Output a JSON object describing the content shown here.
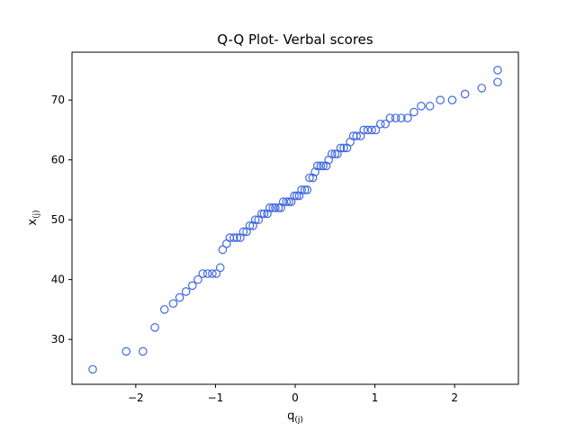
{
  "chart_data": {
    "type": "scatter",
    "title": "Q-Q Plot- Verbal scores",
    "xlabel_main": "q",
    "xlabel_sub": "(j)",
    "ylabel_main": "x",
    "ylabel_sub": "(j)",
    "xlim": [
      -2.8,
      2.8
    ],
    "ylim": [
      22.5,
      78.0
    ],
    "xticks": [
      -2,
      -1,
      0,
      1,
      2
    ],
    "xtick_labels": [
      "−2",
      "−1",
      "0",
      "1",
      "2"
    ],
    "yticks": [
      30,
      40,
      50,
      60,
      70
    ],
    "ytick_labels": [
      "30",
      "40",
      "50",
      "60",
      "70"
    ],
    "grid": false,
    "marker_color": "#4169e1",
    "series": [
      {
        "points": [
          [
            -2.54,
            25
          ],
          [
            -2.12,
            28
          ],
          [
            -1.91,
            28
          ],
          [
            -1.76,
            32
          ],
          [
            -1.64,
            35
          ],
          [
            -1.53,
            36
          ],
          [
            -1.45,
            37
          ],
          [
            -1.37,
            38
          ],
          [
            -1.29,
            39
          ],
          [
            -1.22,
            40
          ],
          [
            -1.16,
            41
          ],
          [
            -1.1,
            41
          ],
          [
            -1.04,
            41
          ],
          [
            -0.99,
            41
          ],
          [
            -0.94,
            42
          ],
          [
            -0.91,
            45
          ],
          [
            -0.86,
            46
          ],
          [
            -0.82,
            47
          ],
          [
            -0.77,
            47
          ],
          [
            -0.73,
            47
          ],
          [
            -0.69,
            47
          ],
          [
            -0.65,
            48
          ],
          [
            -0.61,
            48
          ],
          [
            -0.57,
            49
          ],
          [
            -0.53,
            49
          ],
          [
            -0.5,
            50
          ],
          [
            -0.46,
            50
          ],
          [
            -0.42,
            51
          ],
          [
            -0.39,
            51
          ],
          [
            -0.35,
            51
          ],
          [
            -0.32,
            52
          ],
          [
            -0.28,
            52
          ],
          [
            -0.25,
            52
          ],
          [
            -0.21,
            52
          ],
          [
            -0.18,
            52
          ],
          [
            -0.15,
            53
          ],
          [
            -0.11,
            53
          ],
          [
            -0.08,
            53
          ],
          [
            -0.05,
            53
          ],
          [
            -0.01,
            54
          ],
          [
            0.02,
            54
          ],
          [
            0.05,
            54
          ],
          [
            0.08,
            55
          ],
          [
            0.12,
            55
          ],
          [
            0.15,
            55
          ],
          [
            0.18,
            57
          ],
          [
            0.22,
            57
          ],
          [
            0.25,
            58
          ],
          [
            0.28,
            59
          ],
          [
            0.32,
            59
          ],
          [
            0.35,
            59
          ],
          [
            0.39,
            59
          ],
          [
            0.42,
            60
          ],
          [
            0.46,
            61
          ],
          [
            0.5,
            61
          ],
          [
            0.53,
            61
          ],
          [
            0.57,
            62
          ],
          [
            0.61,
            62
          ],
          [
            0.65,
            62
          ],
          [
            0.69,
            63
          ],
          [
            0.73,
            64
          ],
          [
            0.77,
            64
          ],
          [
            0.82,
            64
          ],
          [
            0.86,
            65
          ],
          [
            0.91,
            65
          ],
          [
            0.96,
            65
          ],
          [
            1.01,
            65
          ],
          [
            1.07,
            66
          ],
          [
            1.13,
            66
          ],
          [
            1.19,
            67
          ],
          [
            1.26,
            67
          ],
          [
            1.33,
            67
          ],
          [
            1.41,
            67
          ],
          [
            1.49,
            68
          ],
          [
            1.58,
            69
          ],
          [
            1.69,
            69
          ],
          [
            1.82,
            70
          ],
          [
            1.97,
            70
          ],
          [
            2.13,
            71
          ],
          [
            2.34,
            72
          ],
          [
            2.54,
            73
          ],
          [
            2.54,
            75
          ]
        ]
      }
    ]
  }
}
